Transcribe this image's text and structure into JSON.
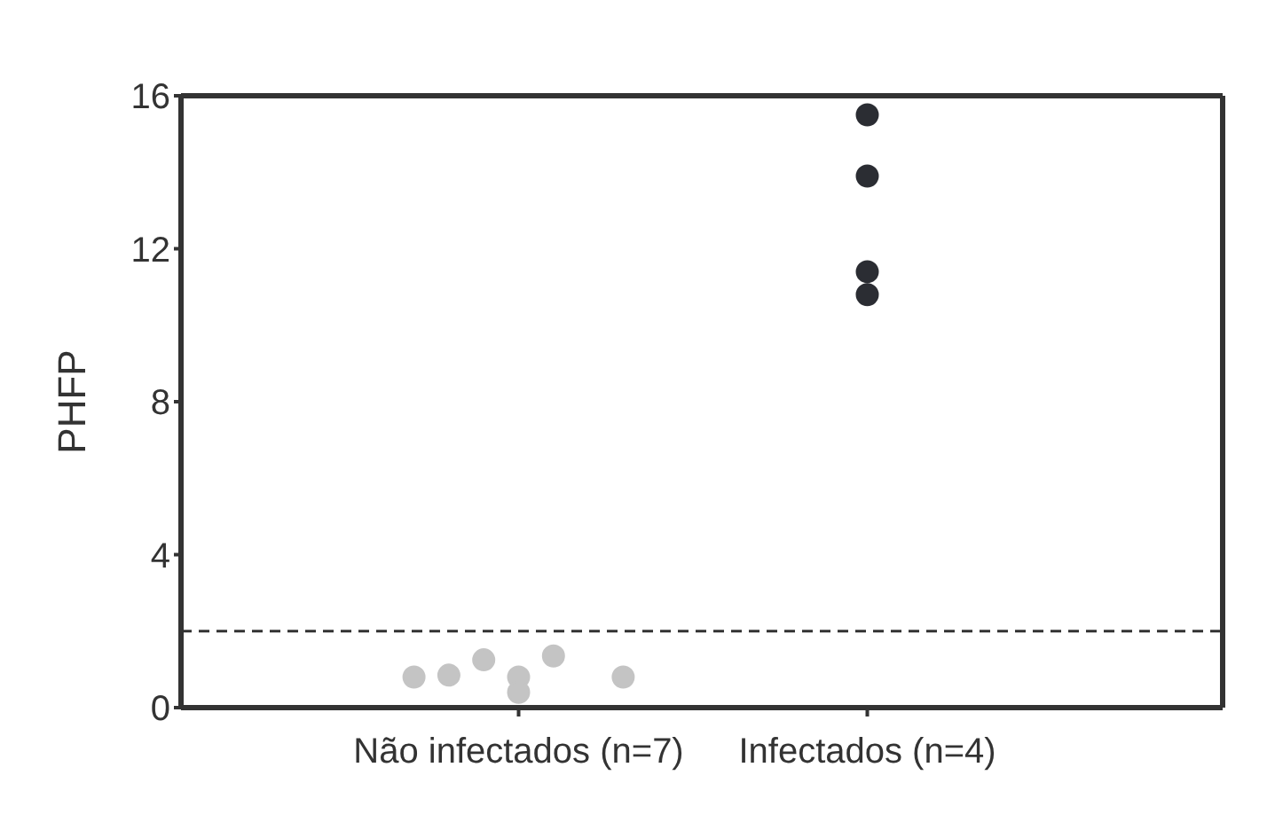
{
  "chart_data": {
    "type": "scatter",
    "ylabel": "PHFP",
    "categories": [
      "Não infectados (n=7)",
      "Infectados (n=4)"
    ],
    "series": [
      {
        "color": "#c4c4c4",
        "x": [
          "Não infectados (n=7)",
          "Não infectados (n=7)",
          "Não infectados (n=7)",
          "Não infectados (n=7)",
          "Não infectados (n=7)",
          "Não infectados (n=7)",
          "Não infectados (n=7)"
        ],
        "values": [
          0.8,
          0.85,
          1.25,
          0.8,
          1.35,
          0.4,
          0.8
        ]
      },
      {
        "color": "#2b2d33",
        "x": [
          "Infectados (n=4)",
          "Infectados (n=4)",
          "Infectados (n=4)",
          "Infectados (n=4)"
        ],
        "values": [
          15.5,
          13.9,
          11.4,
          10.8
        ]
      }
    ],
    "ylim": [
      0,
      16
    ],
    "yticks": [
      0,
      4,
      8,
      12,
      16
    ],
    "legend": false,
    "marker": "circle",
    "ref_lines": [
      {
        "axis": "y",
        "value": 2,
        "color": "#333333",
        "line_style": "dashed"
      }
    ]
  }
}
